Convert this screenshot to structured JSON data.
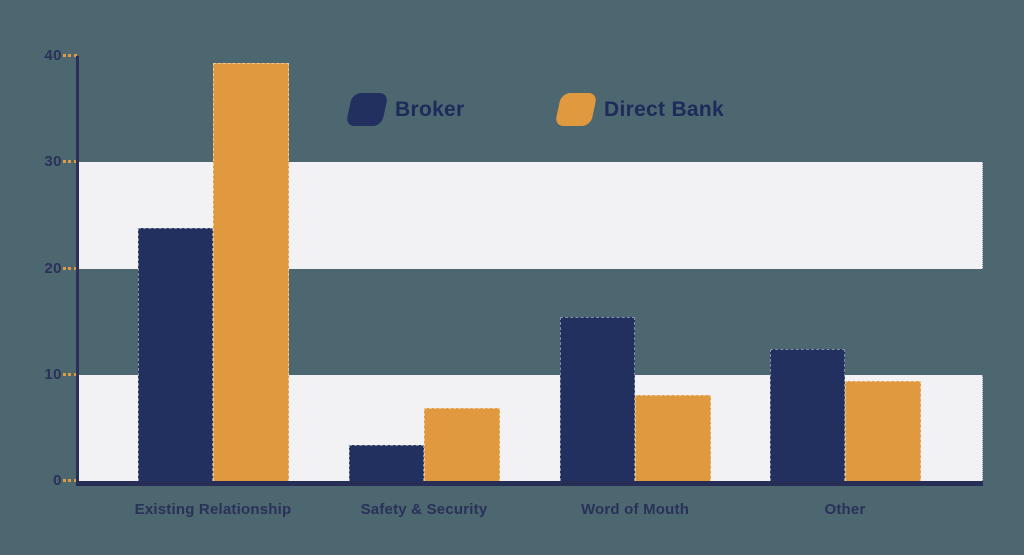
{
  "background_color": "#4c6770",
  "colors": {
    "broker": "#22305f",
    "direct_bank": "#e0993f",
    "band": "#f2f1f4",
    "axis": "#2a3158",
    "tick_dash": "#e0993f",
    "label_text": "#2a3158",
    "legend_text": "#1d2b5a"
  },
  "legend": {
    "items": [
      {
        "label": "Broker",
        "color": "#22305f"
      },
      {
        "label": "Direct Bank",
        "color": "#e0993f"
      }
    ]
  },
  "chart_data": {
    "type": "bar",
    "title": "",
    "xlabel": "",
    "ylabel": "",
    "categories": [
      "Existing Relationship",
      "Safety & Security",
      "Word of Mouth",
      "Other"
    ],
    "series": [
      {
        "name": "Broker",
        "color": "#22305f",
        "values": [
          23.8,
          3.4,
          15.4,
          12.4
        ]
      },
      {
        "name": "Direct Bank",
        "color": "#e0993f",
        "values": [
          39.3,
          6.9,
          8.1,
          9.4
        ]
      }
    ],
    "ylim": [
      0,
      40
    ],
    "yticks": [
      0,
      10,
      20,
      30,
      40
    ],
    "bands": [
      [
        0,
        10
      ],
      [
        20,
        30
      ]
    ],
    "grid": "horizontal-bands",
    "legend_position": "top-center"
  }
}
